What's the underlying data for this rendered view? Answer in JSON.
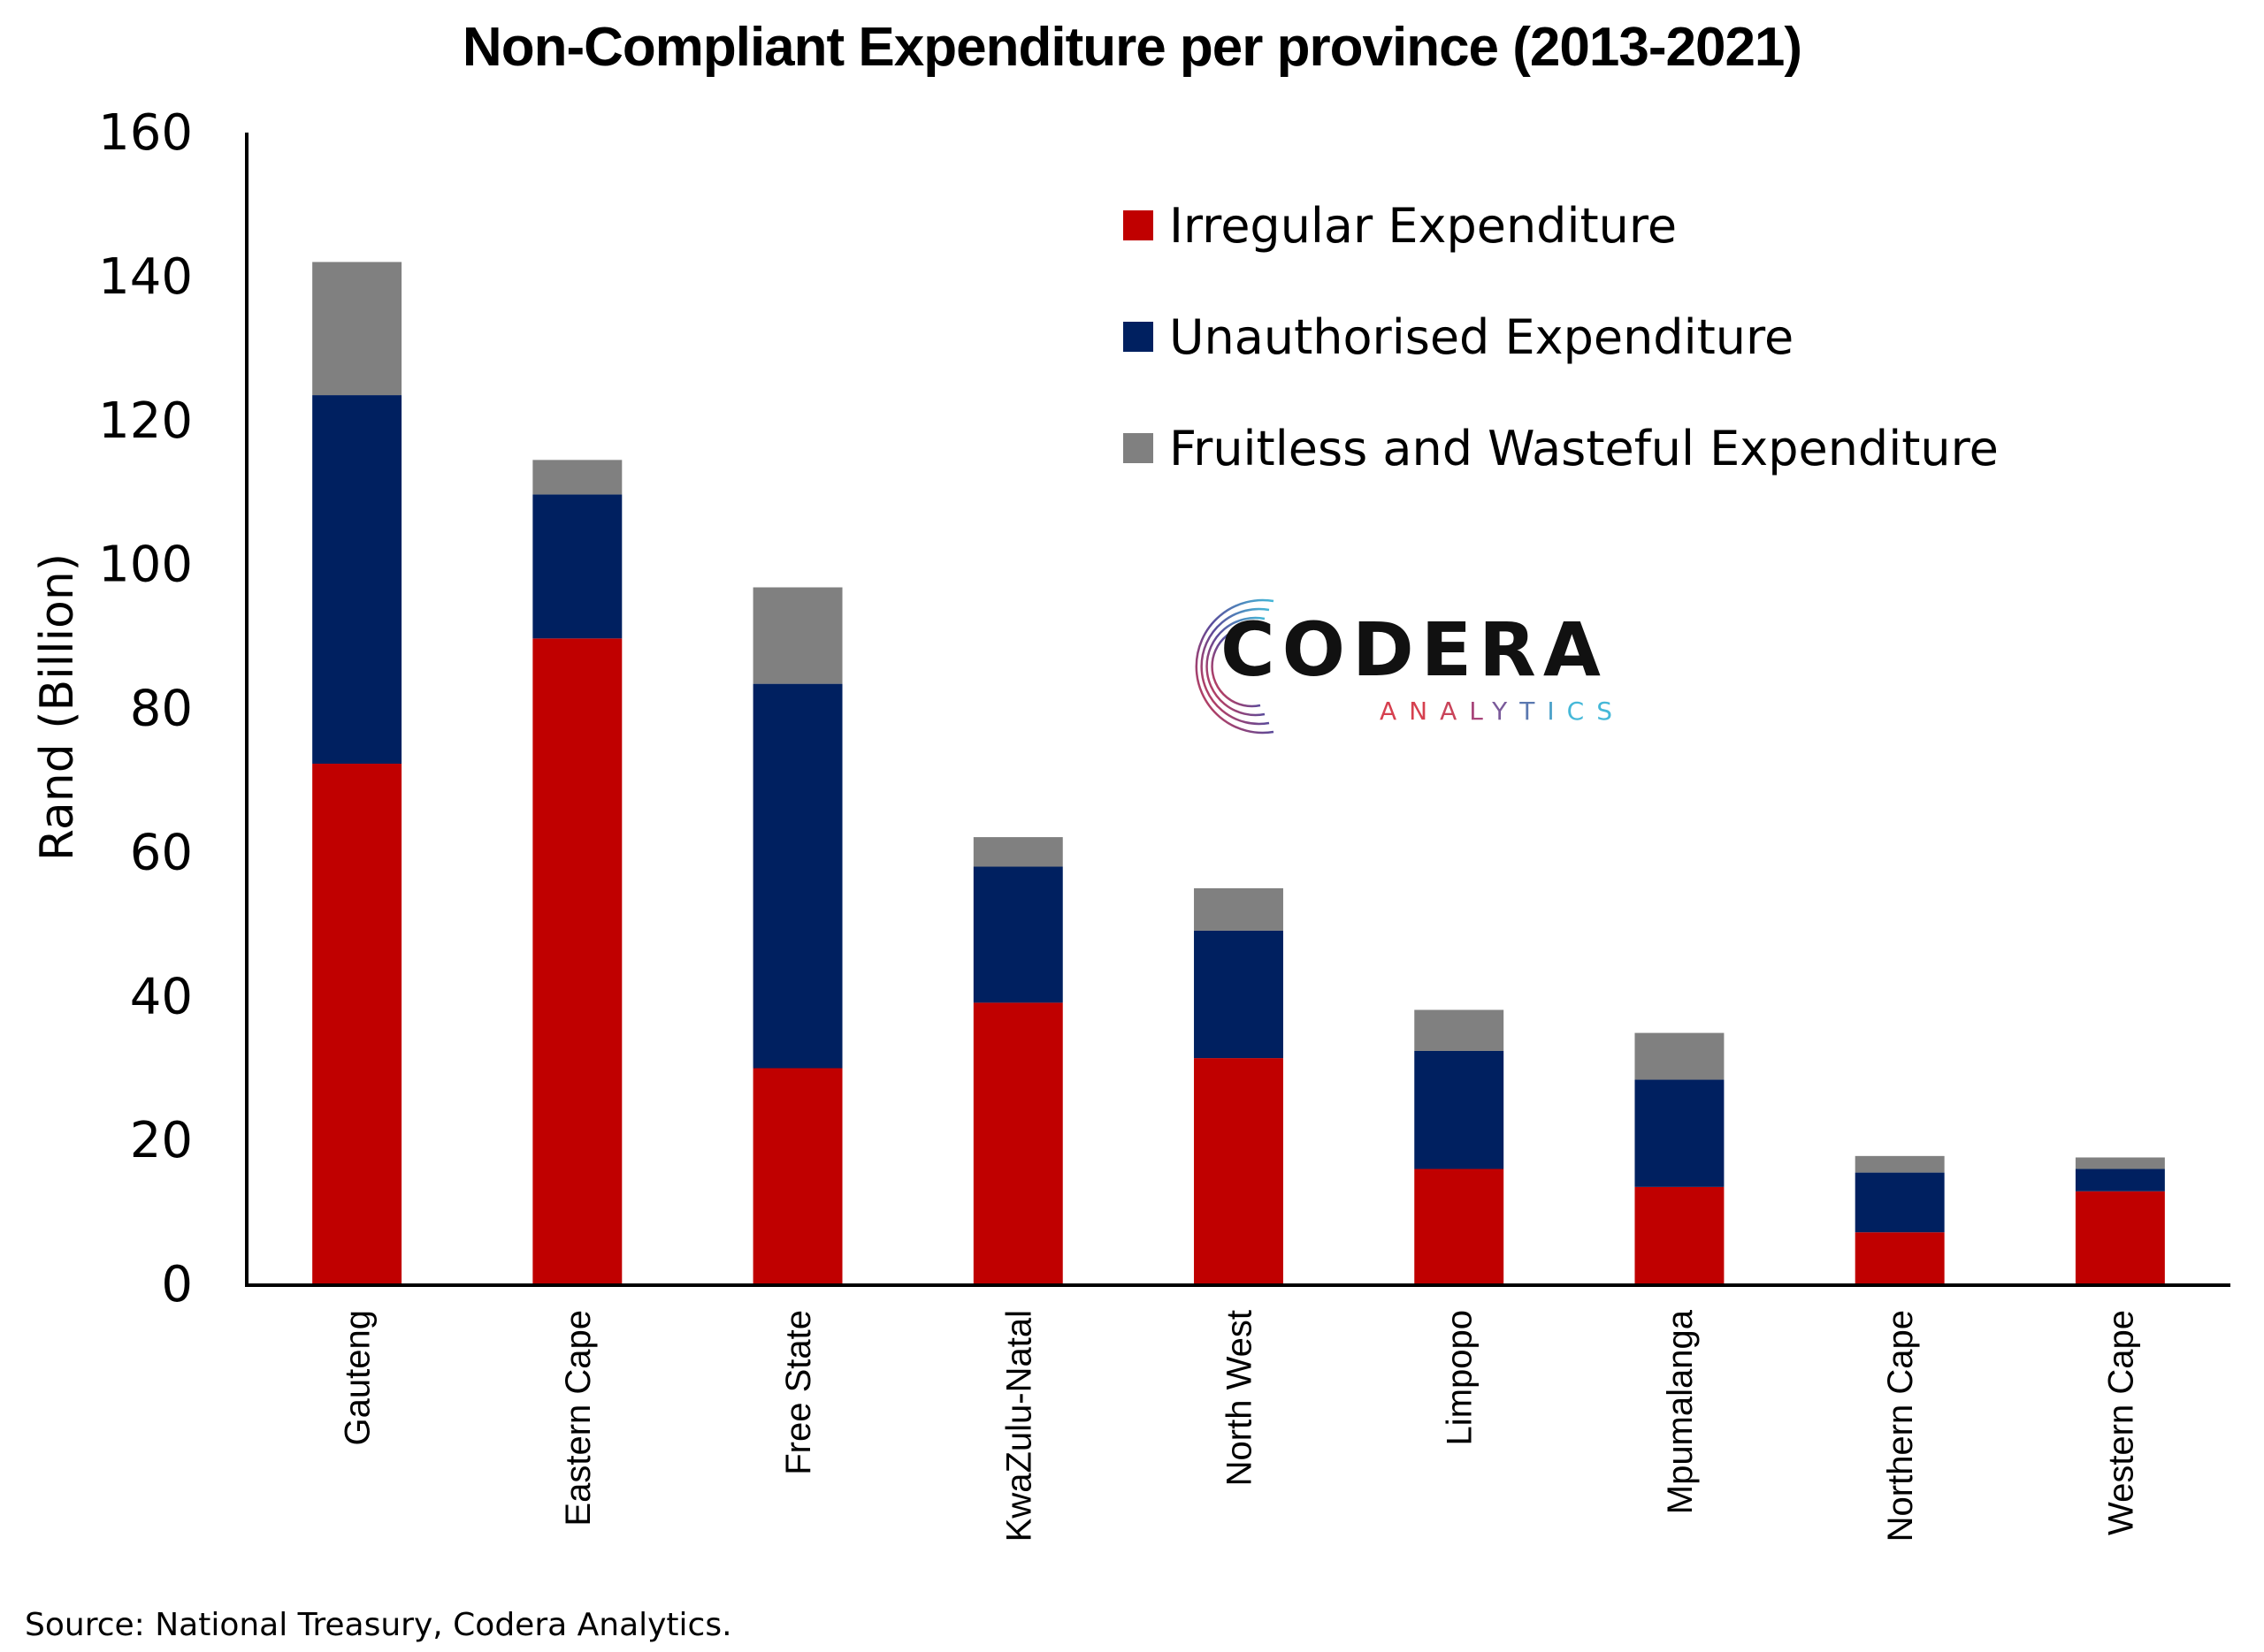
{
  "chart_data": {
    "type": "bar",
    "stacked": true,
    "title": "Non-Compliant Expenditure per province (2013-2021)",
    "xlabel": "",
    "ylabel": "Rand (Billion)",
    "ylim": [
      0,
      160
    ],
    "yticks": [
      0,
      20,
      40,
      60,
      80,
      100,
      120,
      140,
      160
    ],
    "grid": false,
    "legend_position": "top-right",
    "categories": [
      "Gauteng",
      "Eastern Cape",
      "Free State",
      "KwaZulu-Natal",
      "North West",
      "Limpopo",
      "Mpumalanga",
      "Northern Cape",
      "Western Cape"
    ],
    "series": [
      {
        "name": "Irregular Expenditure",
        "color": "#c00000",
        "values": [
          72.2,
          89.6,
          29.9,
          39.0,
          31.3,
          15.9,
          13.4,
          7.1,
          12.8
        ]
      },
      {
        "name": "Unauthorised Expenditure",
        "color": "#002060",
        "values": [
          51.2,
          20.0,
          53.4,
          18.9,
          17.7,
          16.4,
          14.9,
          8.3,
          3.1
        ]
      },
      {
        "name": "Fruitless and Wasteful Expenditure",
        "color": "#808080",
        "values": [
          18.5,
          4.8,
          13.4,
          4.1,
          5.9,
          5.7,
          6.5,
          2.3,
          1.6
        ]
      }
    ]
  },
  "logo": {
    "name": "CODERA",
    "tagline": "ANALYTICS"
  },
  "source": "Source: National Treasury, Codera Analytics."
}
